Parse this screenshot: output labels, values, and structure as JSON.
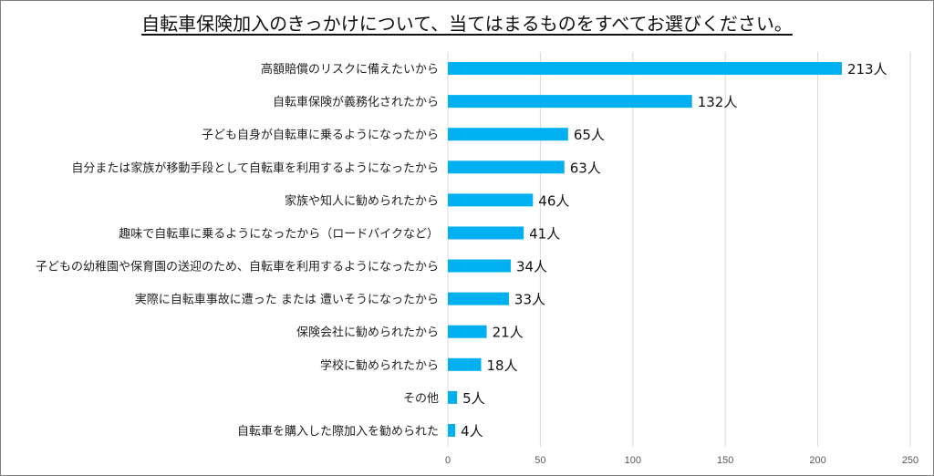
{
  "chart_data": {
    "type": "bar",
    "orientation": "horizontal",
    "title": "自転車保険加入のきっかけについて、当てはまるものをすべてお選びください。",
    "categories": [
      "高額賠償のリスクに備えたいから",
      "自転車保険が義務化されたから",
      "子ども自身が自転車に乗るようになったから",
      "自分または家族が移動手段として自転車を利用するようになったから",
      "家族や知人に勧められたから",
      "趣味で自転車に乗るようになったから（ロードバイクなど）",
      "子どもの幼稚園や保育園の送迎のため、自転車を利用するようになったから",
      "実際に自転車事故に遭った または 遭いそうになったから",
      "保険会社に勧められたから",
      "学校に勧められたから",
      "その他",
      "自転車を購入した際加入を勧められた"
    ],
    "values": [
      213,
      132,
      65,
      63,
      46,
      41,
      34,
      33,
      21,
      18,
      5,
      4
    ],
    "value_labels": [
      "213人",
      "132人",
      "65人",
      "63人",
      "46人",
      "41人",
      "34人",
      "33人",
      "21人",
      "18人",
      "5人",
      "4人"
    ],
    "xlim": [
      0,
      250
    ],
    "xticks": [
      "0",
      "50",
      "100",
      "150",
      "200",
      "250"
    ],
    "xlabel": "",
    "ylabel": "",
    "grid": true,
    "bar_color": "#00b0f0",
    "grid_color": "#d9d9d9"
  }
}
